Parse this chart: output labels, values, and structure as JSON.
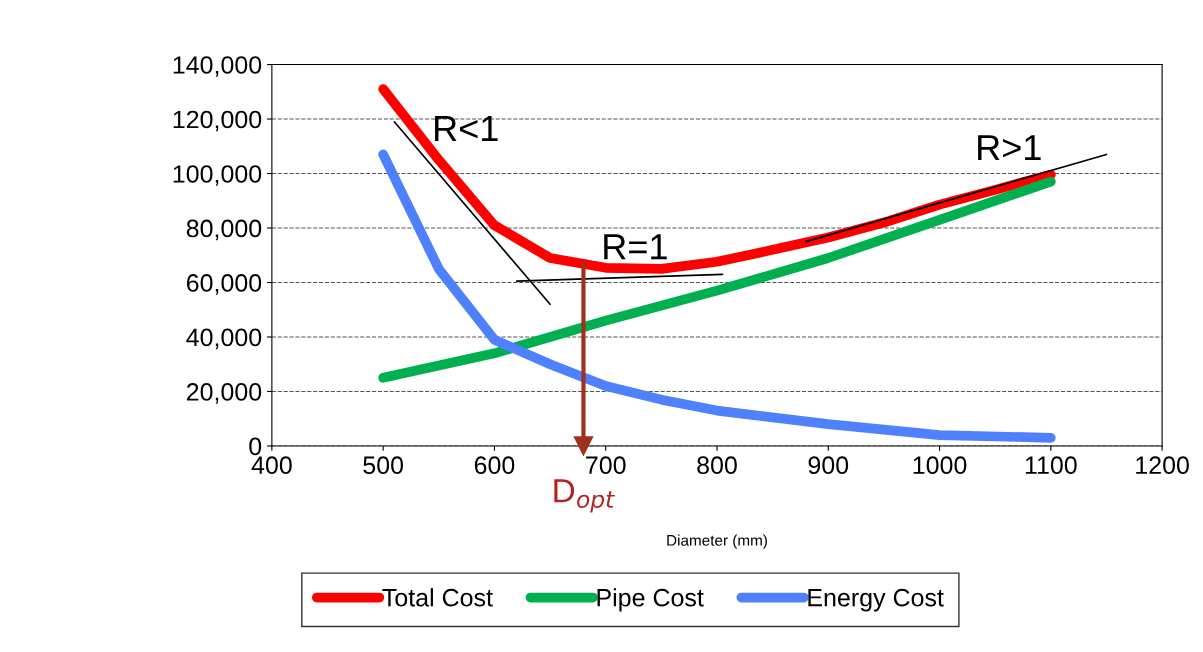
{
  "chart_data": {
    "type": "line",
    "xlabel": "Diameter (mm)",
    "xlim": [
      400,
      1200
    ],
    "xticks": [
      400,
      500,
      600,
      700,
      800,
      900,
      1000,
      1100,
      1200
    ],
    "ylim": [
      0,
      140000
    ],
    "yticks": [
      {
        "value": 0,
        "label": "0"
      },
      {
        "value": 20000,
        "label": "20,000"
      },
      {
        "value": 40000,
        "label": "40,000"
      },
      {
        "value": 60000,
        "label": "60,000"
      },
      {
        "value": 80000,
        "label": "80,000"
      },
      {
        "value": 100000,
        "label": "100,000"
      },
      {
        "value": 120000,
        "label": "120,000"
      },
      {
        "value": 140000,
        "label": "140,000"
      }
    ],
    "grid": "y",
    "legend": "bottom",
    "marker": "none",
    "line_style": "solid",
    "series": [
      {
        "name": "Total Cost",
        "color": "#ff0000",
        "x": [
          500,
          550,
          600,
          650,
          700,
          750,
          800,
          850,
          900,
          950,
          1000,
          1050,
          1100
        ],
        "values": [
          131000,
          105000,
          81000,
          69000,
          65400,
          65000,
          67600,
          72000,
          76500,
          82000,
          88600,
          94000,
          99600
        ]
      },
      {
        "name": "Pipe Cost",
        "color": "#00b050",
        "x": [
          500,
          600,
          700,
          800,
          900,
          1000,
          1100
        ],
        "values": [
          25000,
          34000,
          46000,
          57000,
          69000,
          83000,
          97000
        ]
      },
      {
        "name": "Energy Cost",
        "color": "#4f81ff",
        "x": [
          500,
          550,
          600,
          650,
          700,
          750,
          800,
          900,
          1000,
          1100
        ],
        "values": [
          107000,
          65000,
          39000,
          30000,
          22000,
          17000,
          13000,
          8000,
          4000,
          3000
        ]
      },
      {
        "color": "#000000",
        "x": [
          510,
          650
        ],
        "values": [
          119000,
          52000
        ]
      },
      {
        "color": "#000000",
        "x": [
          620,
          805
        ],
        "values": [
          60500,
          63000
        ]
      },
      {
        "color": "#000000",
        "x": [
          880,
          1150
        ],
        "values": [
          75000,
          107000
        ]
      }
    ],
    "ref_lines": [
      {
        "axis": "x",
        "value": 680,
        "label": "D$_{opt}$",
        "color": "#a0301e"
      }
    ],
    "annotations": [
      "R<1",
      "R=1",
      "R>1"
    ]
  }
}
